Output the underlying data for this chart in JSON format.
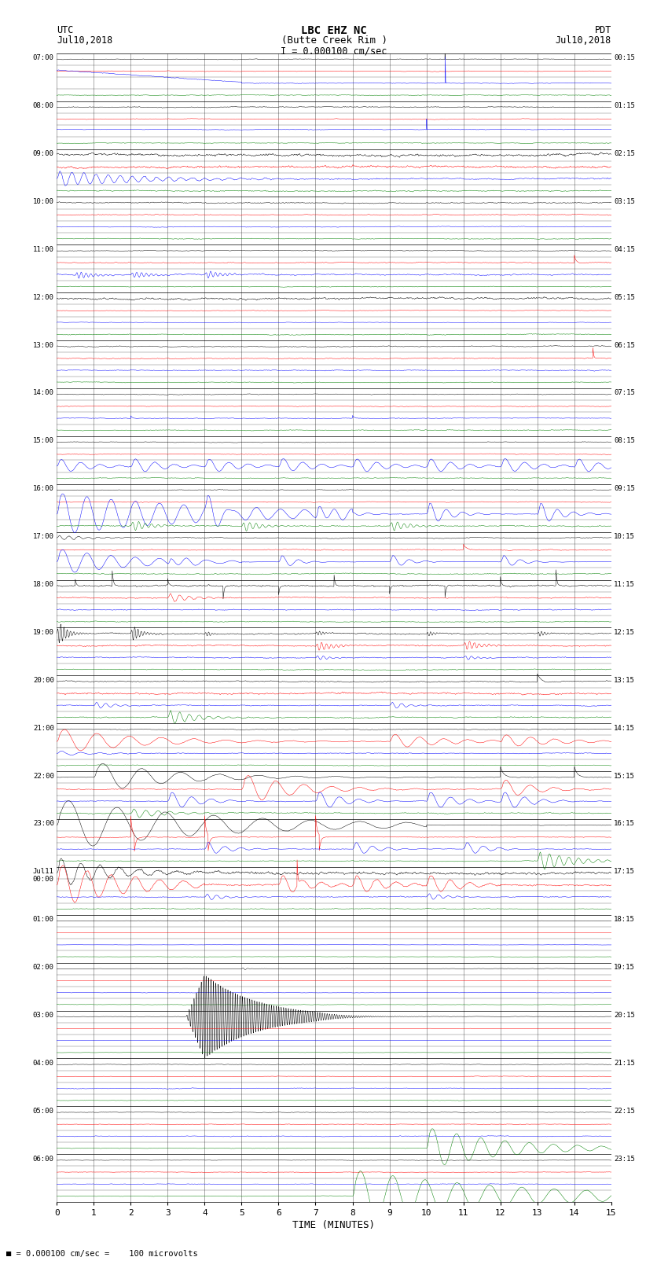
{
  "title_line1": "LBC EHZ NC",
  "title_line2": "(Butte Creek Rim )",
  "scale_text": "I = 0.000100 cm/sec",
  "left_label_1": "UTC",
  "left_label_2": "Jul10,2018",
  "right_label_1": "PDT",
  "right_label_2": "Jul10,2018",
  "xlabel": "TIME (MINUTES)",
  "bottom_note": "= 0.000100 cm/sec =    100 microvolts",
  "left_times": [
    "07:00",
    "08:00",
    "09:00",
    "10:00",
    "11:00",
    "12:00",
    "13:00",
    "14:00",
    "15:00",
    "16:00",
    "17:00",
    "18:00",
    "19:00",
    "20:00",
    "21:00",
    "22:00",
    "23:00",
    "Jul11\n00:00",
    "01:00",
    "02:00",
    "03:00",
    "04:00",
    "05:00",
    "06:00"
  ],
  "right_times": [
    "00:15",
    "01:15",
    "02:15",
    "03:15",
    "04:15",
    "05:15",
    "06:15",
    "07:15",
    "08:15",
    "09:15",
    "10:15",
    "11:15",
    "12:15",
    "13:15",
    "14:15",
    "15:15",
    "16:15",
    "17:15",
    "18:15",
    "19:15",
    "20:15",
    "21:15",
    "22:15",
    "23:15"
  ],
  "n_rows": 24,
  "n_traces_per_row": 4,
  "colors": [
    "black",
    "red",
    "blue",
    "green"
  ],
  "bg_color": "white",
  "grid_color": "#888888",
  "figsize": [
    8.5,
    16.13
  ],
  "dpi": 100
}
